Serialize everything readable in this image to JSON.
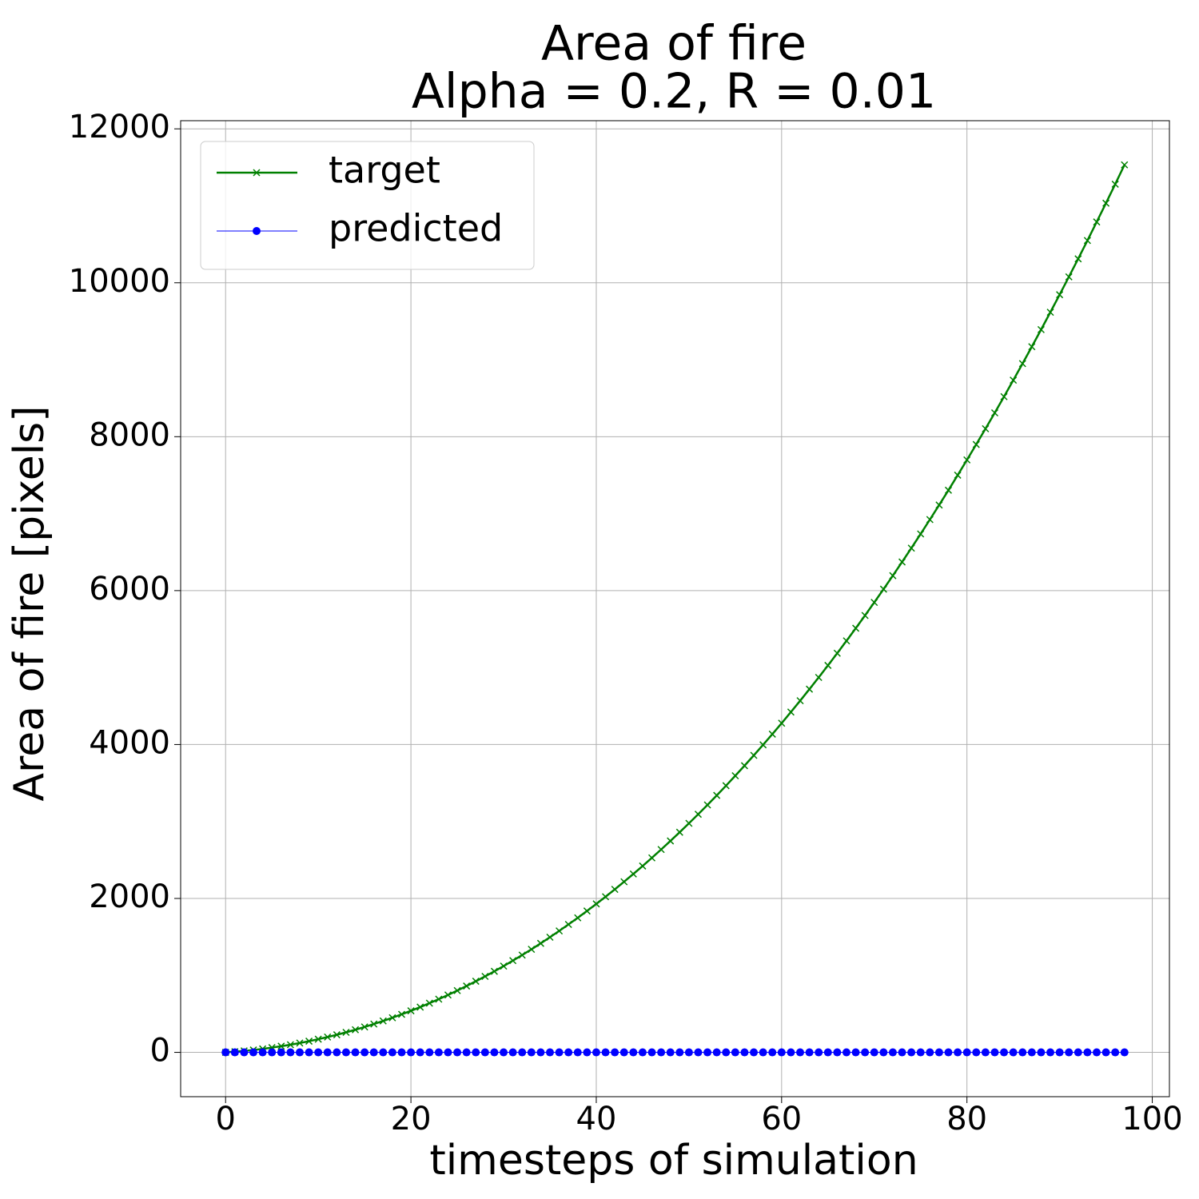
{
  "chart_data": {
    "type": "line",
    "title": "Area of fire",
    "subtitle": "Alpha = 0.2, R = 0.01",
    "xlabel": "timesteps of simulation",
    "ylabel": "Area of fire [pixels]",
    "x": [
      0,
      1,
      2,
      3,
      4,
      5,
      6,
      7,
      8,
      9,
      10,
      11,
      12,
      13,
      14,
      15,
      16,
      17,
      18,
      19,
      20,
      21,
      22,
      23,
      24,
      25,
      26,
      27,
      28,
      29,
      30,
      31,
      32,
      33,
      34,
      35,
      36,
      37,
      38,
      39,
      40,
      41,
      42,
      43,
      44,
      45,
      46,
      47,
      48,
      49,
      50,
      51,
      52,
      53,
      54,
      55,
      56,
      57,
      58,
      59,
      60,
      61,
      62,
      63,
      64,
      65,
      66,
      67,
      68,
      69,
      70,
      71,
      72,
      73,
      74,
      75,
      76,
      77,
      78,
      79,
      80,
      81,
      82,
      83,
      84,
      85,
      86,
      87,
      88,
      89,
      90,
      91,
      92,
      93,
      94,
      95,
      96,
      97
    ],
    "series": [
      {
        "name": "target",
        "color": "#008000",
        "marker": "x",
        "linewidth": 2.5,
        "values": [
          0,
          9,
          19,
          31,
          45,
          62,
          80,
          99,
          121,
          145,
          171,
          199,
          228,
          260,
          294,
          330,
          368,
          408,
          450,
          494,
          540,
          588,
          639,
          691,
          746,
          803,
          862,
          924,
          987,
          1053,
          1121,
          1192,
          1264,
          1339,
          1416,
          1496,
          1578,
          1662,
          1748,
          1837,
          1929,
          2022,
          2118,
          2217,
          2318,
          2421,
          2527,
          2636,
          2747,
          2860,
          2976,
          3094,
          3215,
          3339,
          3465,
          3594,
          3725,
          3859,
          3996,
          4135,
          4277,
          4422,
          4569,
          4719,
          4872,
          5028,
          5186,
          5347,
          5511,
          5677,
          5847,
          6019,
          6194,
          6372,
          6552,
          6736,
          6923,
          7112,
          7304,
          7500,
          7698,
          7899,
          8103,
          8310,
          8520,
          8734,
          8950,
          9169,
          9391,
          9617,
          9845,
          10077,
          10311,
          10549,
          10790,
          11034,
          11281,
          11532
        ]
      },
      {
        "name": "predicted",
        "color": "#0000ff",
        "marker": "o",
        "linewidth": 1,
        "values": [
          0,
          0,
          0,
          0,
          0,
          0,
          0,
          0,
          0,
          0,
          0,
          0,
          0,
          0,
          0,
          0,
          0,
          0,
          0,
          0,
          0,
          0,
          0,
          0,
          0,
          0,
          0,
          0,
          0,
          0,
          0,
          0,
          0,
          0,
          0,
          0,
          0,
          0,
          0,
          0,
          0,
          0,
          0,
          0,
          0,
          0,
          0,
          0,
          0,
          0,
          0,
          0,
          0,
          0,
          0,
          0,
          0,
          0,
          0,
          0,
          0,
          0,
          0,
          0,
          0,
          0,
          0,
          0,
          0,
          0,
          0,
          0,
          0,
          0,
          0,
          0,
          0,
          0,
          0,
          0,
          0,
          0,
          0,
          0,
          0,
          0,
          0,
          0,
          0,
          0,
          0,
          0,
          0,
          0,
          0,
          0,
          0,
          0
        ]
      }
    ],
    "xlim": [
      -4.85,
      101.85
    ],
    "ylim": [
      -576,
      12106
    ],
    "xticks": [
      0,
      20,
      40,
      60,
      80,
      100
    ],
    "yticks": [
      0,
      2000,
      4000,
      6000,
      8000,
      10000,
      12000
    ],
    "grid": true,
    "legend": "upper left"
  }
}
